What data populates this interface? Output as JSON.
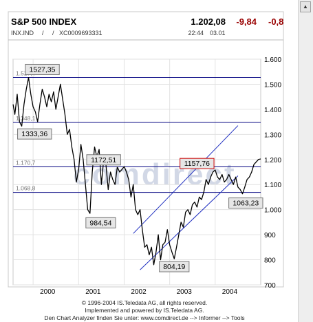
{
  "header": {
    "title": "S&P 500 INDEX",
    "price": "1.202,08",
    "change": "-9,84",
    "change_pct": "-0,8",
    "symbol": "INX.IND",
    "sep1": "/",
    "sep2": "/",
    "isin": "XC0009693331",
    "time": "22:44",
    "date": "03.01"
  },
  "colors": {
    "price_line": "#000000",
    "level_line": "#000080",
    "trend_line": "#2030c0",
    "negative": "#990000",
    "watermark": "#d2d8e6",
    "box_fill": "#e6e6e6",
    "box_highlight_border": "#cc0000"
  },
  "watermark": "comdirect",
  "chart_data": {
    "type": "line",
    "x_ticks": [
      "2000",
      "2001",
      "2002",
      "2003",
      "2004"
    ],
    "y_ticks": [
      "1.600",
      "1.500",
      "1.400",
      "1.300",
      "1.200",
      "1.100",
      "1.000",
      "900",
      "800",
      "700"
    ],
    "y_tick_values": [
      1600,
      1500,
      1400,
      1300,
      1200,
      1100,
      1000,
      900,
      800,
      700
    ],
    "ylim": [
      700,
      1600
    ],
    "xlim": [
      1999.56,
      2005.0
    ],
    "grid": true,
    "series": [
      {
        "x": [
          1999.56,
          1999.6,
          1999.65,
          1999.7,
          1999.75,
          1999.8,
          1999.85,
          1999.9,
          1999.95,
          2000.0,
          2000.05,
          2000.1,
          2000.15,
          2000.2,
          2000.25,
          2000.3,
          2000.35,
          2000.4,
          2000.45,
          2000.5,
          2000.55,
          2000.6,
          2000.65,
          2000.7,
          2000.75,
          2000.8,
          2000.85,
          2000.9,
          2000.95,
          2001.0,
          2001.05,
          2001.1,
          2001.15,
          2001.2,
          2001.25,
          2001.3,
          2001.35,
          2001.4,
          2001.45,
          2001.5,
          2001.55,
          2001.6,
          2001.65,
          2001.7,
          2001.75,
          2001.8,
          2001.85,
          2001.9,
          2001.95,
          2002.0,
          2002.05,
          2002.1,
          2002.15,
          2002.2,
          2002.25,
          2002.3,
          2002.35,
          2002.4,
          2002.45,
          2002.5,
          2002.55,
          2002.6,
          2002.65,
          2002.7,
          2002.75,
          2002.8,
          2002.85,
          2002.9,
          2002.95,
          2003.0,
          2003.05,
          2003.1,
          2003.15,
          2003.2,
          2003.25,
          2003.3,
          2003.35,
          2003.4,
          2003.45,
          2003.5,
          2003.55,
          2003.6,
          2003.65,
          2003.7,
          2003.75,
          2003.8,
          2003.85,
          2003.9,
          2003.95,
          2004.0,
          2004.05,
          2004.1,
          2004.15,
          2004.2,
          2004.25,
          2004.3,
          2004.35,
          2004.4,
          2004.45,
          2004.5,
          2004.55,
          2004.6,
          2004.65,
          2004.7,
          2004.75,
          2004.8,
          2004.85,
          2004.9,
          2004.95,
          2005.0
        ],
        "values": [
          1420,
          1380,
          1460,
          1350,
          1333,
          1420,
          1480,
          1527,
          1460,
          1410,
          1390,
          1350,
          1420,
          1480,
          1450,
          1410,
          1460,
          1430,
          1470,
          1400,
          1450,
          1500,
          1440,
          1380,
          1300,
          1320,
          1250,
          1200,
          1110,
          1160,
          1260,
          1200,
          1100,
          1000,
          985,
          1150,
          1250,
          1210,
          1240,
          1100,
          1200,
          1180,
          1080,
          1150,
          1120,
          1100,
          1170,
          1150,
          1160,
          1172,
          1150,
          1120,
          1050,
          1100,
          1000,
          980,
          1000,
          920,
          850,
          860,
          820,
          850,
          780,
          830,
          900,
          800,
          860,
          870,
          920,
          860,
          830,
          804,
          850,
          900,
          950,
          930,
          990,
          1000,
          980,
          1020,
          1030,
          1010,
          1050,
          1040,
          1070,
          1120,
          1100,
          1130,
          1150,
          1158,
          1130,
          1120,
          1140,
          1110,
          1120,
          1140,
          1120,
          1100,
          1130,
          1090,
          1080,
          1063,
          1090,
          1120,
          1130,
          1150,
          1180,
          1190,
          1200,
          1202
        ]
      }
    ],
    "horizontal_lines": [
      {
        "value": 1527.35,
        "label": "1.527,4"
      },
      {
        "value": 1348.1,
        "label": "1.348,1"
      },
      {
        "value": 1170.7,
        "label": "1.170,7"
      },
      {
        "value": 1068.8,
        "label": "1.068,8"
      }
    ],
    "trend_channel": [
      {
        "x": [
          2002.2,
          2004.5
        ],
        "values": [
          905,
          1335
        ]
      },
      {
        "x": [
          2002.35,
          2004.5
        ],
        "values": [
          760,
          1135
        ]
      }
    ],
    "annotations": [
      {
        "text": "1527,35",
        "x": 1999.92,
        "y": 1527.35,
        "highlight": false
      },
      {
        "text": "1333,36",
        "x": 1999.78,
        "y": 1333.36,
        "highlight": false
      },
      {
        "text": "1172,51",
        "x": 2001.55,
        "y": 1172.51,
        "highlight": false
      },
      {
        "text": "984,54",
        "x": 2001.25,
        "y": 984.54,
        "highlight": false
      },
      {
        "text": "1157,76",
        "x": 2003.6,
        "y": 1157.76,
        "highlight": true
      },
      {
        "text": "804,19",
        "x": 2003.1,
        "y": 804.19,
        "highlight": false
      },
      {
        "text": "1063,23",
        "x": 2004.45,
        "y": 1063.23,
        "highlight": false
      }
    ]
  },
  "footer": {
    "line1": "© 1996-2004 IS.Teledata AG, all rights reserved.",
    "line2": "Implemented and powered by IS.Teledata AG.",
    "line3": "Den Chart Analyzer finden Sie unter: www.comdirect.de --> Informer --> Tools"
  }
}
